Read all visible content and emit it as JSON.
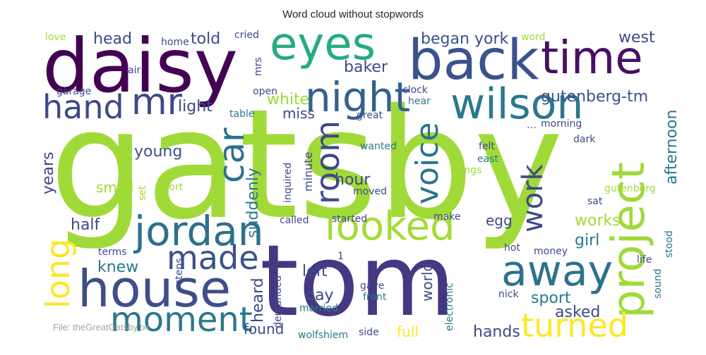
{
  "chart_data": {
    "type": "wordcloud",
    "title": "Word cloud without stopwords",
    "footer_label": "File: theGreatGatsby.txt",
    "palette": "viridis",
    "words": [
      {
        "text": "gatsby",
        "weight": 1.0
      },
      {
        "text": "tom",
        "weight": 0.76
      },
      {
        "text": "daisy",
        "weight": 0.62
      },
      {
        "text": "back",
        "weight": 0.42
      },
      {
        "text": "time",
        "weight": 0.36
      },
      {
        "text": "eyes",
        "weight": 0.35
      },
      {
        "text": "house",
        "weight": 0.37
      },
      {
        "text": "project",
        "weight": 0.34
      },
      {
        "text": "wilson",
        "weight": 0.33
      },
      {
        "text": "away",
        "weight": 0.31
      },
      {
        "text": "jordan",
        "weight": 0.31
      },
      {
        "text": "looked",
        "weight": 0.3
      },
      {
        "text": "night",
        "weight": 0.3
      },
      {
        "text": "mr",
        "weight": 0.29
      },
      {
        "text": "car",
        "weight": 0.27
      },
      {
        "text": "moment",
        "weight": 0.27
      },
      {
        "text": "turned",
        "weight": 0.25
      },
      {
        "text": "long",
        "weight": 0.25
      },
      {
        "text": "made",
        "weight": 0.24
      },
      {
        "text": "hand",
        "weight": 0.23
      },
      {
        "text": "room",
        "weight": 0.23
      },
      {
        "text": "voice",
        "weight": 0.22
      },
      {
        "text": "work",
        "weight": 0.21
      },
      {
        "text": "gutenberg-tm",
        "weight": 0.14
      },
      {
        "text": "afternoon",
        "weight": 0.13
      },
      {
        "text": "west",
        "weight": 0.13
      },
      {
        "text": "head",
        "weight": 0.12
      },
      {
        "text": "told",
        "weight": 0.12
      },
      {
        "text": "began",
        "weight": 0.12
      },
      {
        "text": "york",
        "weight": 0.12
      },
      {
        "text": "white",
        "weight": 0.12
      },
      {
        "text": "baker",
        "weight": 0.12
      },
      {
        "text": "light",
        "weight": 0.12
      },
      {
        "text": "young",
        "weight": 0.12
      },
      {
        "text": "years",
        "weight": 0.12
      },
      {
        "text": "suddenly",
        "weight": 0.12
      },
      {
        "text": "hour",
        "weight": 0.12
      },
      {
        "text": "half",
        "weight": 0.12
      },
      {
        "text": "works",
        "weight": 0.12
      },
      {
        "text": "girl",
        "weight": 0.12
      },
      {
        "text": "knew",
        "weight": 0.12
      },
      {
        "text": "left",
        "weight": 0.12
      },
      {
        "text": "day",
        "weight": 0.12
      },
      {
        "text": "heard",
        "weight": 0.12
      },
      {
        "text": "sport",
        "weight": 0.12
      },
      {
        "text": "asked",
        "weight": 0.12
      },
      {
        "text": "hands",
        "weight": 0.12
      },
      {
        "text": "found",
        "weight": 0.11
      },
      {
        "text": "full",
        "weight": 0.11
      },
      {
        "text": "world",
        "weight": 0.11
      },
      {
        "text": "miss",
        "weight": 0.11
      },
      {
        "text": "small",
        "weight": 0.11
      },
      {
        "text": "egg",
        "weight": 0.11
      },
      {
        "text": "minute",
        "weight": 0.09
      },
      {
        "text": "love",
        "weight": 0.08
      },
      {
        "text": "word",
        "weight": 0.08
      },
      {
        "text": "home",
        "weight": 0.08
      },
      {
        "text": "cried",
        "weight": 0.08
      },
      {
        "text": "air",
        "weight": 0.08
      },
      {
        "text": "mrs",
        "weight": 0.08
      },
      {
        "text": "garage",
        "weight": 0.08
      },
      {
        "text": "open",
        "weight": 0.08
      },
      {
        "text": "clock",
        "weight": 0.08
      },
      {
        "text": "hear",
        "weight": 0.08
      },
      {
        "text": "table",
        "weight": 0.08
      },
      {
        "text": "great",
        "weight": 0.08
      },
      {
        "text": "…",
        "weight": 0.08
      },
      {
        "text": "morning",
        "weight": 0.08
      },
      {
        "text": "dark",
        "weight": 0.08
      },
      {
        "text": "felt",
        "weight": 0.08
      },
      {
        "text": "east",
        "weight": 0.08
      },
      {
        "text": "things",
        "weight": 0.08
      },
      {
        "text": "wanted",
        "weight": 0.08
      },
      {
        "text": "inquired",
        "weight": 0.08
      },
      {
        "text": "moved",
        "weight": 0.08
      },
      {
        "text": "sort",
        "weight": 0.08
      },
      {
        "text": "set",
        "weight": 0.08
      },
      {
        "text": "gutenberg",
        "weight": 0.08
      },
      {
        "text": "sat",
        "weight": 0.08
      },
      {
        "text": "started",
        "weight": 0.08
      },
      {
        "text": "called",
        "weight": 0.08
      },
      {
        "text": "make",
        "weight": 0.08
      },
      {
        "text": "terms",
        "weight": 0.08
      },
      {
        "text": "money",
        "weight": 0.08
      },
      {
        "text": "hot",
        "weight": 0.08
      },
      {
        "text": "stood",
        "weight": 0.08
      },
      {
        "text": "life",
        "weight": 0.08
      },
      {
        "text": "sound",
        "weight": 0.08
      },
      {
        "text": "steps",
        "weight": 0.08
      },
      {
        "text": "gave",
        "weight": 0.08
      },
      {
        "text": "electronic",
        "weight": 0.08
      },
      {
        "text": "nick",
        "weight": 0.08
      },
      {
        "text": "front",
        "weight": 0.08
      },
      {
        "text": "married",
        "weight": 0.08
      },
      {
        "text": "demanded",
        "weight": 0.08
      },
      {
        "text": "wolfshiem",
        "weight": 0.08
      },
      {
        "text": "side",
        "weight": 0.08
      },
      {
        "text": "1",
        "weight": 0.08
      }
    ]
  }
}
